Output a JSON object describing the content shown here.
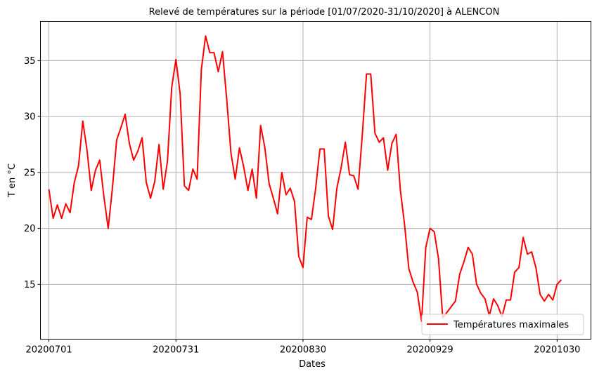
{
  "chart_data": {
    "type": "line",
    "title": "Relevé de températures sur la période [01/07/2020-31/10/2020] à ALENCON",
    "xlabel": "Dates",
    "ylabel": "T en °C",
    "x_ticks": [
      "20200701",
      "20200731",
      "20200830",
      "20200929",
      "20201030"
    ],
    "y_ticks": [
      15,
      20,
      25,
      30,
      35
    ],
    "xlim": [
      -2,
      128
    ],
    "ylim": [
      10.1,
      38.5
    ],
    "grid": true,
    "legend_position": "lower-right",
    "series": [
      {
        "name": "Températures maximales",
        "color": "#ff0000",
        "values": [
          23.5,
          20.9,
          22.1,
          20.9,
          22.2,
          21.4,
          24.1,
          25.6,
          29.6,
          27.0,
          23.4,
          25.2,
          26.1,
          22.8,
          20.0,
          23.6,
          27.9,
          29.0,
          30.2,
          27.6,
          26.1,
          26.9,
          28.1,
          24.1,
          22.7,
          24.2,
          27.5,
          23.5,
          26.0,
          32.6,
          35.1,
          32.0,
          23.8,
          23.4,
          25.3,
          24.4,
          34.2,
          37.2,
          35.7,
          35.7,
          34.0,
          35.8,
          31.5,
          26.7,
          24.4,
          27.2,
          25.5,
          23.4,
          25.3,
          22.7,
          29.2,
          27.2,
          24.0,
          22.7,
          21.3,
          25.0,
          23.0,
          23.6,
          22.4,
          17.5,
          16.5,
          21.0,
          20.8,
          23.6,
          27.1,
          27.1,
          21.1,
          19.9,
          23.6,
          25.4,
          27.7,
          24.8,
          24.7,
          23.5,
          28.3,
          33.8,
          33.8,
          28.5,
          27.7,
          28.1,
          25.2,
          27.6,
          28.4,
          23.4,
          20.3,
          16.4,
          15.2,
          14.3,
          11.7,
          18.3,
          20.0,
          19.7,
          17.3,
          12.0,
          12.5,
          13.0,
          13.5,
          15.9,
          17.0,
          18.3,
          17.7,
          15.0,
          14.2,
          13.7,
          12.2,
          13.7,
          13.1,
          12.1,
          13.6,
          13.6,
          16.1,
          16.5,
          19.2,
          17.7,
          17.9,
          16.5,
          14.1,
          13.5,
          14.1,
          13.6,
          15.0,
          15.4
        ]
      }
    ]
  }
}
